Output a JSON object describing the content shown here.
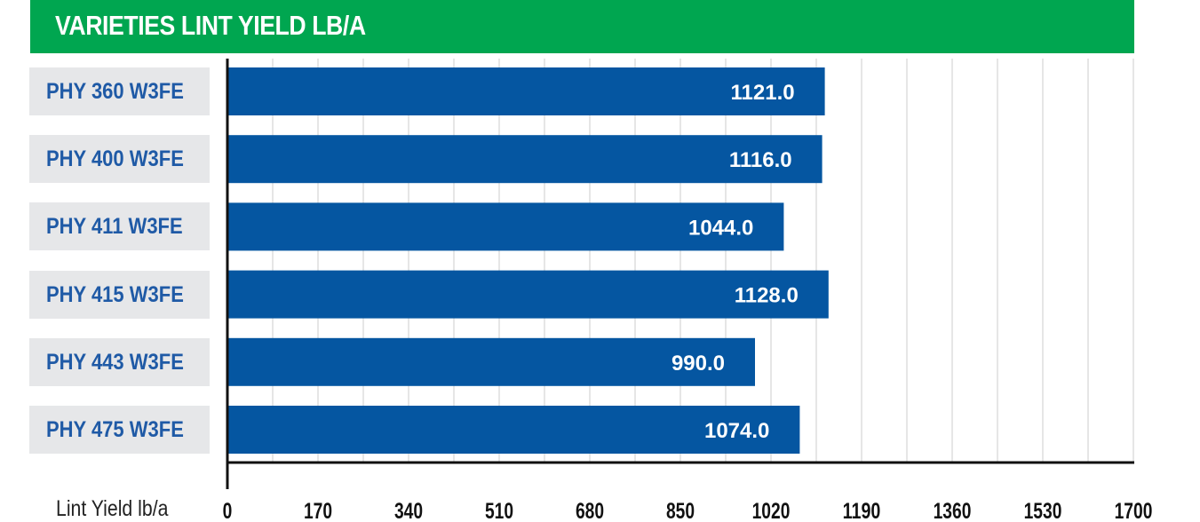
{
  "chart_data": {
    "type": "bar",
    "orientation": "horizontal",
    "title": "VARIETIES LINT YIELD LB/A",
    "xlabel": "Lint Yield lb/a",
    "categories": [
      "PHY 360 W3FE",
      "PHY 400 W3FE",
      "PHY 411 W3FE",
      "PHY 415 W3FE",
      "PHY 443 W3FE",
      "PHY 475 W3FE"
    ],
    "values": [
      1121.0,
      1116.0,
      1044.0,
      1128.0,
      990.0,
      1074.0
    ],
    "value_labels": [
      "1121.0",
      "1116.0",
      "1044.0",
      "1128.0",
      "990.0",
      "1074.0"
    ],
    "xlim": [
      0,
      1700
    ],
    "ticks": [
      "0",
      "170",
      "340",
      "510",
      "680",
      "850",
      "1020",
      "1190",
      "1360",
      "1530",
      "1700"
    ],
    "grid": true,
    "colors": {
      "bar": "#0556a1",
      "title_bg": "#00a650",
      "label_bg": "#e6e7e9",
      "label_text": "#1f5aa6",
      "grid": "#cccccc"
    }
  }
}
